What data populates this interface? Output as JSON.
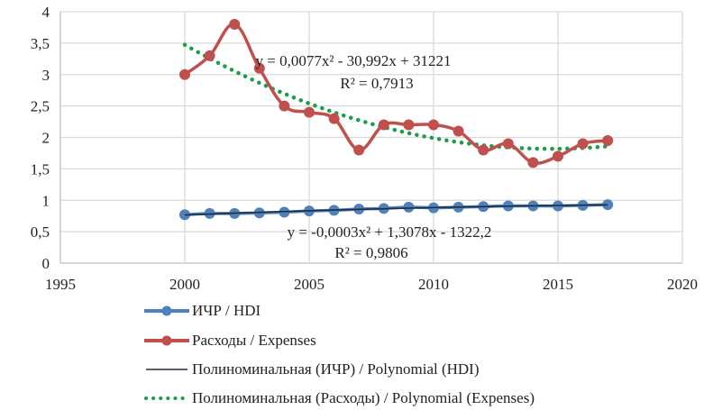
{
  "chart_data": {
    "type": "line",
    "title": "",
    "xlabel": "",
    "ylabel": "",
    "xlim": [
      1995,
      2020
    ],
    "ylim": [
      0,
      4
    ],
    "grid": true,
    "x_ticks": [
      "1995",
      "2000",
      "2005",
      "2010",
      "2015",
      "2020"
    ],
    "x_tick_values": [
      1995,
      2000,
      2005,
      2010,
      2015,
      2020
    ],
    "y_ticks": [
      "0",
      "0,5",
      "1",
      "1,5",
      "2",
      "2,5",
      "3",
      "3,5",
      "4"
    ],
    "y_tick_values": [
      0,
      0.5,
      1,
      1.5,
      2,
      2.5,
      3,
      3.5,
      4
    ],
    "x": [
      2000,
      2001,
      2002,
      2003,
      2004,
      2005,
      2006,
      2007,
      2008,
      2009,
      2010,
      2011,
      2012,
      2013,
      2014,
      2015,
      2016,
      2017
    ],
    "series": [
      {
        "name": "ИЧР / HDI",
        "color": "#4f81bd",
        "marker": "circle",
        "values": [
          0.77,
          0.79,
          0.79,
          0.8,
          0.81,
          0.83,
          0.84,
          0.86,
          0.87,
          0.89,
          0.88,
          0.89,
          0.9,
          0.91,
          0.91,
          0.91,
          0.92,
          0.93
        ]
      },
      {
        "name": "Расходы / Expenses",
        "color": "#c0504d",
        "marker": "circle",
        "values": [
          3.0,
          3.3,
          3.8,
          3.1,
          2.5,
          2.4,
          2.3,
          1.8,
          2.2,
          2.2,
          2.2,
          2.1,
          1.8,
          1.9,
          1.6,
          1.7,
          1.9,
          1.95
        ]
      }
    ],
    "trendlines": [
      {
        "name": "Полиноминальная (ИЧР) / Polynomial (HDI)",
        "color": "#1f2d3d",
        "style": "solid",
        "equation": "y = -0,0003x² + 1,3078x - 1322,2",
        "r2": "R² = 0,9806",
        "coeffs": [
          -0.0003,
          1.3078,
          -1322.2
        ]
      },
      {
        "name": "Полиноминальная (Расходы) / Polynomial (Expenses)",
        "color": "#1a9e4a",
        "style": "dotted",
        "equation": "y = 0,0077x² - 30,992x + 31221",
        "r2": "R² = 0,7913",
        "coeffs": [
          0.0077,
          -30.992,
          31221
        ]
      }
    ],
    "legend_position": "bottom-left"
  },
  "colors": {
    "grid": "#d9d9d9",
    "axis": "#bfbfbf"
  }
}
